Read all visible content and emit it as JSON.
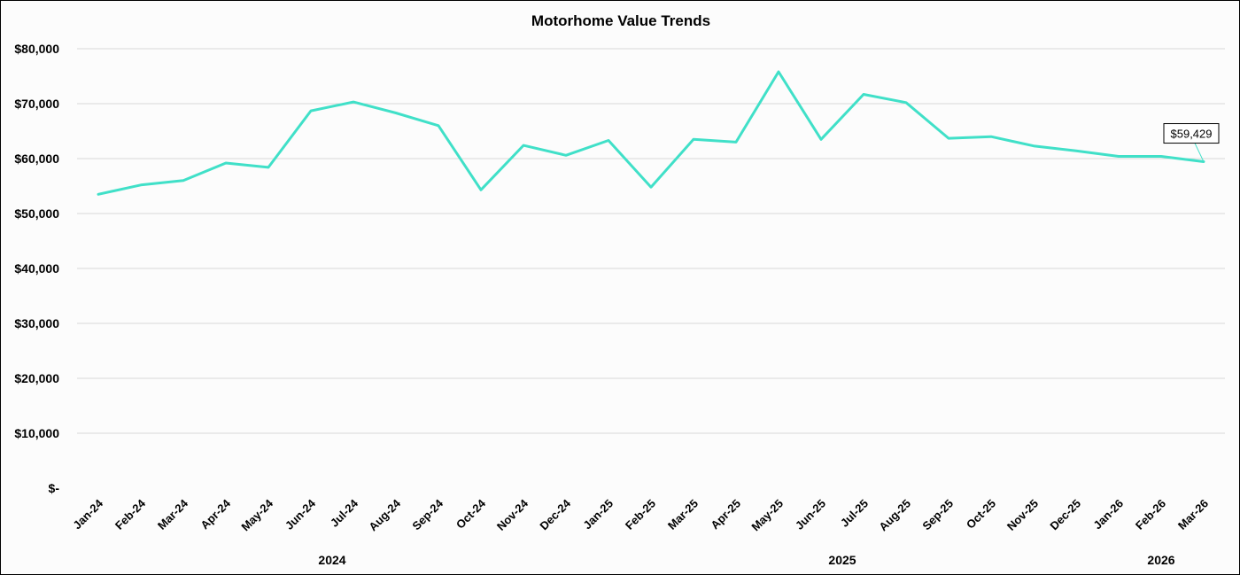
{
  "chart_data": {
    "type": "line",
    "title": "Motorhome Value Trends",
    "xlabel": "",
    "ylabel": "",
    "ylim": [
      0,
      80000
    ],
    "yticks": [
      0,
      10000,
      20000,
      30000,
      40000,
      50000,
      60000,
      70000,
      80000
    ],
    "ytick_labels": [
      "$-",
      "$10,000",
      "$20,000",
      "$30,000",
      "$40,000",
      "$50,000",
      "$60,000",
      "$70,000",
      "$80,000"
    ],
    "categories": [
      "Jan-24",
      "Feb-24",
      "Mar-24",
      "Apr-24",
      "May-24",
      "Jun-24",
      "Jul-24",
      "Aug-24",
      "Sep-24",
      "Oct-24",
      "Nov-24",
      "Dec-24",
      "Jan-25",
      "Feb-25",
      "Mar-25",
      "Apr-25",
      "May-25",
      "Jun-25",
      "Jul-25",
      "Aug-25",
      "Sep-25",
      "Oct-25",
      "Nov-25",
      "Dec-25",
      "Jan-26",
      "Feb-26",
      "Mar-26"
    ],
    "year_groups": [
      {
        "label": "2024",
        "start": 0,
        "end": 11
      },
      {
        "label": "2025",
        "start": 12,
        "end": 23
      },
      {
        "label": "2026",
        "start": 24,
        "end": 26
      }
    ],
    "series": [
      {
        "color": "#40e0c8",
        "values": [
          53500,
          55200,
          56000,
          59200,
          58400,
          68700,
          70300,
          68300,
          66000,
          54300,
          62400,
          60600,
          63300,
          54800,
          63500,
          63000,
          75800,
          63500,
          71700,
          70200,
          63700,
          64000,
          62300,
          61400,
          60400,
          60400,
          59429
        ]
      }
    ],
    "annotations": [
      {
        "index": 26,
        "text": "$59,429"
      }
    ],
    "grid": true,
    "legend": "none"
  }
}
